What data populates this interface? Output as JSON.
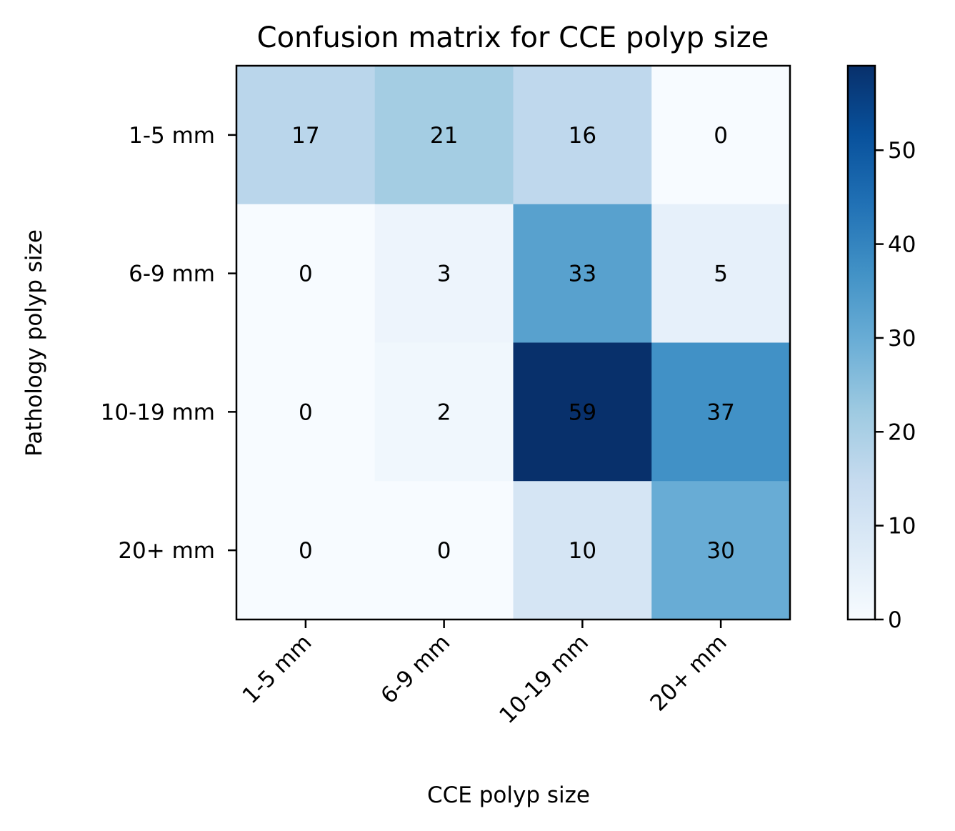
{
  "chart_data": {
    "type": "heatmap",
    "title": "Confusion matrix for CCE polyp size",
    "xlabel": "CCE polyp size",
    "ylabel": "Pathology polyp size",
    "x_categories": [
      "1-5 mm",
      "6-9 mm",
      "10-19 mm",
      "20+ mm"
    ],
    "y_categories": [
      "1-5 mm",
      "6-9 mm",
      "10-19 mm",
      "20+ mm"
    ],
    "matrix": [
      [
        17,
        21,
        16,
        0
      ],
      [
        0,
        3,
        33,
        5
      ],
      [
        0,
        2,
        59,
        37
      ],
      [
        0,
        0,
        10,
        30
      ]
    ],
    "colormap": "Blues",
    "vmin": 0,
    "vmax": 59,
    "colorbar_ticks": [
      0,
      10,
      20,
      30,
      40,
      50
    ],
    "grid": false
  }
}
